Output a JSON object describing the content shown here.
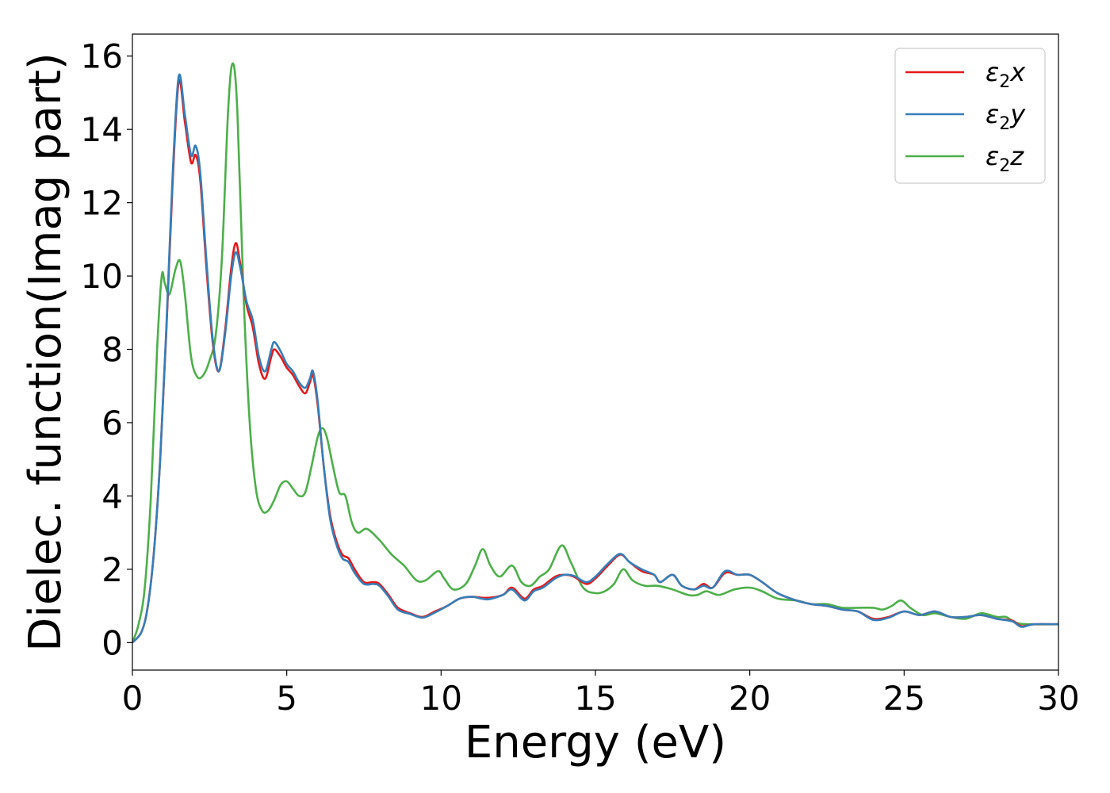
{
  "chart_data": {
    "type": "line",
    "title": "",
    "xlabel": "Energy (eV)",
    "ylabel": "Dielec. function(Imag part)",
    "xlim": [
      0,
      30
    ],
    "ylim": [
      -0.75,
      16.6
    ],
    "x_ticks": [
      0,
      5,
      10,
      15,
      20,
      25,
      30
    ],
    "y_ticks": [
      0,
      2,
      4,
      6,
      8,
      10,
      12,
      14,
      16
    ],
    "grid": false,
    "legend_position": "top-right",
    "series": [
      {
        "name": "ε2x",
        "legend_base": "ε",
        "legend_sub": "2",
        "legend_tail": "x",
        "color": "#e41a1c",
        "points": [
          [
            0,
            0
          ],
          [
            0.3,
            0.3
          ],
          [
            0.5,
            1.0
          ],
          [
            0.7,
            2.5
          ],
          [
            0.9,
            5.0
          ],
          [
            1.1,
            8.5
          ],
          [
            1.3,
            12.5
          ],
          [
            1.5,
            15.3
          ],
          [
            1.7,
            14.2
          ],
          [
            1.9,
            13.1
          ],
          [
            2.05,
            13.3
          ],
          [
            2.2,
            12.6
          ],
          [
            2.4,
            10.2
          ],
          [
            2.6,
            8.2
          ],
          [
            2.8,
            7.4
          ],
          [
            3.0,
            8.5
          ],
          [
            3.2,
            10.2
          ],
          [
            3.35,
            10.9
          ],
          [
            3.5,
            10.3
          ],
          [
            3.7,
            9.2
          ],
          [
            3.9,
            8.6
          ],
          [
            4.1,
            7.6
          ],
          [
            4.3,
            7.2
          ],
          [
            4.5,
            7.8
          ],
          [
            4.6,
            8.0
          ],
          [
            4.8,
            7.8
          ],
          [
            5.0,
            7.5
          ],
          [
            5.2,
            7.3
          ],
          [
            5.4,
            7.0
          ],
          [
            5.6,
            6.8
          ],
          [
            5.75,
            7.1
          ],
          [
            5.85,
            7.3
          ],
          [
            6.0,
            6.5
          ],
          [
            6.2,
            4.8
          ],
          [
            6.4,
            3.5
          ],
          [
            6.6,
            2.8
          ],
          [
            6.8,
            2.4
          ],
          [
            7.0,
            2.3
          ],
          [
            7.2,
            2.0
          ],
          [
            7.5,
            1.65
          ],
          [
            7.8,
            1.65
          ],
          [
            8.0,
            1.6
          ],
          [
            8.3,
            1.3
          ],
          [
            8.6,
            0.95
          ],
          [
            9.0,
            0.8
          ],
          [
            9.4,
            0.7
          ],
          [
            9.8,
            0.85
          ],
          [
            10.2,
            1.0
          ],
          [
            10.6,
            1.2
          ],
          [
            11.0,
            1.25
          ],
          [
            11.5,
            1.22
          ],
          [
            12.0,
            1.3
          ],
          [
            12.3,
            1.5
          ],
          [
            12.7,
            1.2
          ],
          [
            13.0,
            1.45
          ],
          [
            13.3,
            1.55
          ],
          [
            13.7,
            1.8
          ],
          [
            14.0,
            1.85
          ],
          [
            14.3,
            1.8
          ],
          [
            14.7,
            1.6
          ],
          [
            15.0,
            1.75
          ],
          [
            15.4,
            2.1
          ],
          [
            15.8,
            2.4
          ],
          [
            16.1,
            2.2
          ],
          [
            16.5,
            1.95
          ],
          [
            16.9,
            1.85
          ],
          [
            17.1,
            1.65
          ],
          [
            17.5,
            1.85
          ],
          [
            17.8,
            1.55
          ],
          [
            18.2,
            1.45
          ],
          [
            18.5,
            1.6
          ],
          [
            18.8,
            1.5
          ],
          [
            19.2,
            1.9
          ],
          [
            19.6,
            1.85
          ],
          [
            20.0,
            1.85
          ],
          [
            20.4,
            1.65
          ],
          [
            20.9,
            1.35
          ],
          [
            21.5,
            1.15
          ],
          [
            22.0,
            1.05
          ],
          [
            22.5,
            1.0
          ],
          [
            23.0,
            0.9
          ],
          [
            23.5,
            0.85
          ],
          [
            24.0,
            0.65
          ],
          [
            24.5,
            0.7
          ],
          [
            25.0,
            0.85
          ],
          [
            25.5,
            0.75
          ],
          [
            26.0,
            0.85
          ],
          [
            26.5,
            0.7
          ],
          [
            27.0,
            0.7
          ],
          [
            27.5,
            0.75
          ],
          [
            28.0,
            0.65
          ],
          [
            28.5,
            0.6
          ],
          [
            28.8,
            0.45
          ],
          [
            29.2,
            0.5
          ],
          [
            30.0,
            0.5
          ]
        ]
      },
      {
        "name": "ε2y",
        "legend_base": "ε",
        "legend_sub": "2",
        "legend_tail": "y",
        "color": "#377eb8",
        "points": [
          [
            0,
            0
          ],
          [
            0.3,
            0.3
          ],
          [
            0.5,
            1.0
          ],
          [
            0.7,
            2.5
          ],
          [
            0.9,
            5.0
          ],
          [
            1.1,
            8.6
          ],
          [
            1.3,
            12.7
          ],
          [
            1.5,
            15.45
          ],
          [
            1.7,
            14.4
          ],
          [
            1.9,
            13.3
          ],
          [
            2.05,
            13.55
          ],
          [
            2.2,
            12.8
          ],
          [
            2.4,
            10.4
          ],
          [
            2.6,
            8.3
          ],
          [
            2.8,
            7.4
          ],
          [
            3.0,
            8.4
          ],
          [
            3.2,
            10.0
          ],
          [
            3.35,
            10.65
          ],
          [
            3.5,
            10.2
          ],
          [
            3.7,
            9.3
          ],
          [
            3.9,
            8.8
          ],
          [
            4.1,
            7.8
          ],
          [
            4.3,
            7.4
          ],
          [
            4.5,
            8.0
          ],
          [
            4.6,
            8.2
          ],
          [
            4.8,
            7.95
          ],
          [
            5.0,
            7.6
          ],
          [
            5.2,
            7.4
          ],
          [
            5.4,
            7.1
          ],
          [
            5.6,
            6.95
          ],
          [
            5.75,
            7.2
          ],
          [
            5.85,
            7.4
          ],
          [
            6.0,
            6.6
          ],
          [
            6.2,
            4.8
          ],
          [
            6.4,
            3.4
          ],
          [
            6.6,
            2.7
          ],
          [
            6.8,
            2.3
          ],
          [
            7.0,
            2.2
          ],
          [
            7.2,
            1.9
          ],
          [
            7.5,
            1.6
          ],
          [
            7.8,
            1.6
          ],
          [
            8.0,
            1.55
          ],
          [
            8.3,
            1.25
          ],
          [
            8.6,
            0.9
          ],
          [
            9.0,
            0.78
          ],
          [
            9.4,
            0.68
          ],
          [
            9.8,
            0.82
          ],
          [
            10.2,
            1.0
          ],
          [
            10.6,
            1.2
          ],
          [
            11.0,
            1.25
          ],
          [
            11.5,
            1.18
          ],
          [
            12.0,
            1.3
          ],
          [
            12.3,
            1.45
          ],
          [
            12.7,
            1.15
          ],
          [
            13.0,
            1.4
          ],
          [
            13.3,
            1.5
          ],
          [
            13.7,
            1.75
          ],
          [
            14.0,
            1.85
          ],
          [
            14.3,
            1.82
          ],
          [
            14.7,
            1.65
          ],
          [
            15.0,
            1.8
          ],
          [
            15.4,
            2.15
          ],
          [
            15.8,
            2.42
          ],
          [
            16.1,
            2.2
          ],
          [
            16.5,
            2.0
          ],
          [
            16.9,
            1.85
          ],
          [
            17.1,
            1.65
          ],
          [
            17.5,
            1.85
          ],
          [
            17.8,
            1.55
          ],
          [
            18.2,
            1.45
          ],
          [
            18.5,
            1.55
          ],
          [
            18.8,
            1.5
          ],
          [
            19.2,
            1.95
          ],
          [
            19.6,
            1.85
          ],
          [
            20.0,
            1.85
          ],
          [
            20.4,
            1.65
          ],
          [
            20.9,
            1.35
          ],
          [
            21.5,
            1.15
          ],
          [
            22.0,
            1.05
          ],
          [
            22.5,
            1.0
          ],
          [
            23.0,
            0.9
          ],
          [
            23.5,
            0.85
          ],
          [
            24.0,
            0.62
          ],
          [
            24.5,
            0.68
          ],
          [
            25.0,
            0.85
          ],
          [
            25.5,
            0.75
          ],
          [
            26.0,
            0.85
          ],
          [
            26.5,
            0.7
          ],
          [
            27.0,
            0.7
          ],
          [
            27.5,
            0.75
          ],
          [
            28.0,
            0.65
          ],
          [
            28.5,
            0.58
          ],
          [
            28.8,
            0.43
          ],
          [
            29.2,
            0.5
          ],
          [
            30.0,
            0.5
          ]
        ]
      },
      {
        "name": "ε2z",
        "legend_base": "ε",
        "legend_sub": "2",
        "legend_tail": "z",
        "color": "#4daf4a",
        "points": [
          [
            0,
            0
          ],
          [
            0.2,
            0.5
          ],
          [
            0.4,
            1.5
          ],
          [
            0.6,
            4.0
          ],
          [
            0.8,
            8.0
          ],
          [
            0.95,
            10.0
          ],
          [
            1.05,
            9.8
          ],
          [
            1.2,
            9.5
          ],
          [
            1.4,
            10.2
          ],
          [
            1.55,
            10.4
          ],
          [
            1.7,
            9.5
          ],
          [
            1.9,
            7.8
          ],
          [
            2.1,
            7.25
          ],
          [
            2.3,
            7.3
          ],
          [
            2.5,
            7.7
          ],
          [
            2.7,
            8.4
          ],
          [
            2.9,
            10.5
          ],
          [
            3.1,
            14.5
          ],
          [
            3.25,
            15.8
          ],
          [
            3.4,
            14.5
          ],
          [
            3.6,
            9.5
          ],
          [
            3.8,
            6.0
          ],
          [
            4.0,
            4.2
          ],
          [
            4.2,
            3.6
          ],
          [
            4.4,
            3.6
          ],
          [
            4.6,
            3.9
          ],
          [
            4.8,
            4.3
          ],
          [
            5.0,
            4.4
          ],
          [
            5.2,
            4.2
          ],
          [
            5.4,
            4.0
          ],
          [
            5.6,
            4.1
          ],
          [
            5.8,
            4.8
          ],
          [
            6.0,
            5.6
          ],
          [
            6.15,
            5.85
          ],
          [
            6.3,
            5.6
          ],
          [
            6.5,
            4.8
          ],
          [
            6.7,
            4.1
          ],
          [
            6.9,
            4.0
          ],
          [
            7.1,
            3.3
          ],
          [
            7.3,
            3.0
          ],
          [
            7.6,
            3.1
          ],
          [
            8.0,
            2.8
          ],
          [
            8.4,
            2.4
          ],
          [
            8.8,
            2.1
          ],
          [
            9.2,
            1.7
          ],
          [
            9.5,
            1.7
          ],
          [
            9.9,
            1.95
          ],
          [
            10.1,
            1.75
          ],
          [
            10.4,
            1.45
          ],
          [
            10.8,
            1.6
          ],
          [
            11.1,
            2.1
          ],
          [
            11.35,
            2.55
          ],
          [
            11.6,
            2.1
          ],
          [
            11.9,
            1.8
          ],
          [
            12.3,
            2.1
          ],
          [
            12.6,
            1.65
          ],
          [
            12.9,
            1.55
          ],
          [
            13.2,
            1.8
          ],
          [
            13.5,
            2.0
          ],
          [
            13.9,
            2.65
          ],
          [
            14.2,
            2.2
          ],
          [
            14.6,
            1.5
          ],
          [
            15.0,
            1.35
          ],
          [
            15.3,
            1.4
          ],
          [
            15.6,
            1.6
          ],
          [
            15.9,
            2.0
          ],
          [
            16.2,
            1.7
          ],
          [
            16.6,
            1.55
          ],
          [
            17.0,
            1.55
          ],
          [
            17.5,
            1.45
          ],
          [
            18.0,
            1.3
          ],
          [
            18.3,
            1.3
          ],
          [
            18.6,
            1.4
          ],
          [
            19.0,
            1.3
          ],
          [
            19.5,
            1.45
          ],
          [
            20.0,
            1.5
          ],
          [
            20.4,
            1.4
          ],
          [
            20.9,
            1.2
          ],
          [
            21.5,
            1.15
          ],
          [
            22.0,
            1.05
          ],
          [
            22.5,
            1.05
          ],
          [
            23.0,
            0.95
          ],
          [
            23.5,
            0.95
          ],
          [
            24.0,
            0.95
          ],
          [
            24.3,
            0.9
          ],
          [
            24.6,
            1.0
          ],
          [
            24.9,
            1.15
          ],
          [
            25.2,
            0.95
          ],
          [
            25.6,
            0.75
          ],
          [
            26.0,
            0.8
          ],
          [
            26.5,
            0.7
          ],
          [
            27.0,
            0.65
          ],
          [
            27.5,
            0.8
          ],
          [
            28.0,
            0.7
          ],
          [
            28.3,
            0.7
          ],
          [
            28.6,
            0.55
          ],
          [
            29.0,
            0.5
          ],
          [
            30.0,
            0.5
          ]
        ]
      }
    ]
  }
}
